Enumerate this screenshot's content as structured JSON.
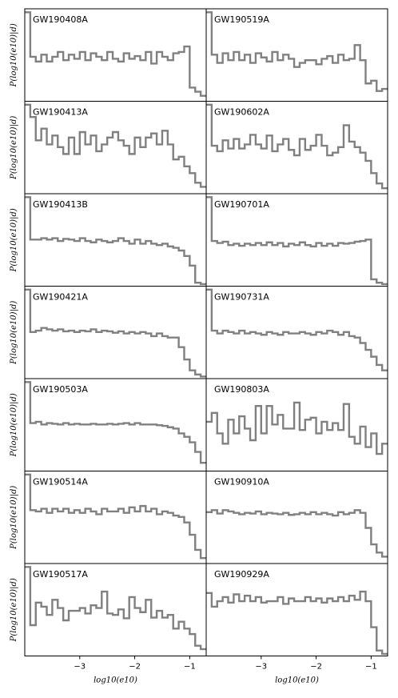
{
  "chart_data": {
    "type": "step-histogram",
    "layout": {
      "rows": 7,
      "cols": 2
    },
    "line_color": "#808080",
    "ylabel": "P(log10(e10)|d)",
    "xlabel": "log10(e10)",
    "xlim": [
      -4.0,
      -0.7
    ],
    "ylim": [
      0,
      1.35
    ],
    "xticks": [
      -3,
      -2,
      -1
    ],
    "xtick_labels": [
      "−3",
      "−2",
      "−1"
    ],
    "bins": [
      -4.0,
      -3.9,
      -3.8,
      -3.7,
      -3.6,
      -3.5,
      -3.4,
      -3.3,
      -3.2,
      -3.1,
      -3.0,
      -2.9,
      -2.8,
      -2.7,
      -2.6,
      -2.5,
      -2.4,
      -2.3,
      -2.2,
      -2.1,
      -2.0,
      -1.9,
      -1.8,
      -1.7,
      -1.6,
      -1.5,
      -1.4,
      -1.3,
      -1.2,
      -1.1,
      -1.0,
      -0.9,
      -0.8,
      -0.7
    ],
    "panels": [
      {
        "title": "GW190408A",
        "values": [
          1.3,
          0.65,
          0.58,
          0.68,
          0.58,
          0.65,
          0.72,
          0.6,
          0.68,
          0.62,
          0.72,
          0.6,
          0.7,
          0.65,
          0.6,
          0.72,
          0.62,
          0.58,
          0.7,
          0.62,
          0.66,
          0.6,
          0.72,
          0.55,
          0.72,
          0.65,
          0.6,
          0.7,
          0.72,
          0.8,
          0.2,
          0.14,
          0.08
        ]
      },
      {
        "title": "GW190519A",
        "values": [
          1.3,
          0.68,
          0.56,
          0.7,
          0.6,
          0.72,
          0.6,
          0.68,
          0.56,
          0.7,
          0.64,
          0.58,
          0.72,
          0.6,
          0.68,
          0.62,
          0.5,
          0.56,
          0.6,
          0.6,
          0.54,
          0.62,
          0.66,
          0.56,
          0.68,
          0.6,
          0.62,
          0.82,
          0.6,
          0.26,
          0.3,
          0.15,
          0.18
        ]
      },
      {
        "title": "GW190413A",
        "values": [
          1.3,
          1.12,
          0.78,
          0.95,
          0.72,
          0.85,
          0.68,
          0.58,
          0.82,
          0.58,
          0.9,
          0.72,
          0.85,
          0.62,
          0.72,
          0.82,
          0.9,
          0.78,
          0.7,
          0.58,
          0.82,
          0.68,
          0.82,
          0.88,
          0.72,
          0.92,
          0.72,
          0.5,
          0.54,
          0.4,
          0.3,
          0.16,
          0.1
        ]
      },
      {
        "title": "GW190602A",
        "values": [
          1.3,
          0.7,
          0.62,
          0.78,
          0.66,
          0.8,
          0.66,
          0.72,
          0.86,
          0.72,
          0.66,
          0.85,
          0.62,
          0.72,
          0.8,
          0.64,
          0.56,
          0.8,
          0.64,
          0.7,
          0.86,
          0.7,
          0.56,
          0.6,
          0.68,
          1.0,
          0.76,
          0.68,
          0.6,
          0.48,
          0.3,
          0.15,
          0.08
        ]
      },
      {
        "title": "GW190413B",
        "values": [
          1.3,
          0.68,
          0.68,
          0.7,
          0.68,
          0.7,
          0.66,
          0.69,
          0.68,
          0.66,
          0.7,
          0.66,
          0.64,
          0.68,
          0.66,
          0.64,
          0.66,
          0.7,
          0.66,
          0.62,
          0.68,
          0.62,
          0.66,
          0.62,
          0.6,
          0.62,
          0.58,
          0.56,
          0.52,
          0.44,
          0.3,
          0.05,
          0.03
        ]
      },
      {
        "title": "GW190701A",
        "values": [
          1.3,
          0.66,
          0.63,
          0.65,
          0.6,
          0.62,
          0.59,
          0.62,
          0.6,
          0.63,
          0.6,
          0.64,
          0.6,
          0.63,
          0.58,
          0.62,
          0.6,
          0.64,
          0.6,
          0.58,
          0.63,
          0.59,
          0.62,
          0.59,
          0.63,
          0.62,
          0.63,
          0.65,
          0.66,
          0.68,
          0.1,
          0.05,
          0.03
        ]
      },
      {
        "title": "GW190421A",
        "values": [
          1.3,
          0.68,
          0.7,
          0.74,
          0.72,
          0.7,
          0.72,
          0.69,
          0.7,
          0.68,
          0.7,
          0.69,
          0.72,
          0.68,
          0.7,
          0.69,
          0.67,
          0.69,
          0.66,
          0.68,
          0.66,
          0.68,
          0.66,
          0.62,
          0.66,
          0.62,
          0.6,
          0.6,
          0.46,
          0.28,
          0.12,
          0.06,
          0.03
        ]
      },
      {
        "title": "GW190731A",
        "values": [
          1.3,
          0.7,
          0.66,
          0.7,
          0.68,
          0.66,
          0.7,
          0.66,
          0.68,
          0.66,
          0.64,
          0.68,
          0.66,
          0.64,
          0.68,
          0.66,
          0.66,
          0.68,
          0.66,
          0.64,
          0.68,
          0.66,
          0.7,
          0.68,
          0.64,
          0.68,
          0.62,
          0.6,
          0.52,
          0.42,
          0.32,
          0.2,
          0.12
        ]
      },
      {
        "title": "GW190503A",
        "values": [
          1.3,
          0.7,
          0.72,
          0.68,
          0.7,
          0.69,
          0.68,
          0.7,
          0.68,
          0.69,
          0.68,
          0.68,
          0.69,
          0.68,
          0.68,
          0.69,
          0.68,
          0.69,
          0.7,
          0.68,
          0.7,
          0.68,
          0.68,
          0.68,
          0.67,
          0.66,
          0.64,
          0.62,
          0.55,
          0.5,
          0.42,
          0.28,
          0.12
        ]
      },
      {
        "title": "GW190803A",
        "values": [
          0.72,
          0.85,
          0.55,
          0.4,
          0.75,
          0.55,
          0.8,
          0.62,
          0.45,
          0.95,
          0.55,
          0.95,
          0.68,
          0.82,
          0.62,
          0.62,
          1.0,
          0.6,
          0.75,
          0.78,
          0.55,
          0.72,
          0.6,
          0.7,
          0.6,
          0.98,
          0.5,
          0.4,
          0.65,
          0.35,
          0.55,
          0.25,
          0.4
        ]
      },
      {
        "title": "GW190514A",
        "values": [
          1.3,
          0.78,
          0.76,
          0.8,
          0.74,
          0.8,
          0.76,
          0.8,
          0.74,
          0.78,
          0.74,
          0.8,
          0.76,
          0.72,
          0.8,
          0.76,
          0.76,
          0.8,
          0.74,
          0.82,
          0.76,
          0.84,
          0.76,
          0.8,
          0.72,
          0.76,
          0.74,
          0.7,
          0.68,
          0.6,
          0.42,
          0.2,
          0.08
        ]
      },
      {
        "title": "GW190910A",
        "values": [
          0.75,
          0.78,
          0.73,
          0.78,
          0.76,
          0.74,
          0.72,
          0.74,
          0.73,
          0.76,
          0.72,
          0.74,
          0.73,
          0.72,
          0.74,
          0.71,
          0.72,
          0.74,
          0.72,
          0.75,
          0.72,
          0.74,
          0.72,
          0.7,
          0.75,
          0.72,
          0.74,
          0.78,
          0.74,
          0.52,
          0.28,
          0.16,
          0.1
        ]
      },
      {
        "title": "GW190517A",
        "values": [
          1.3,
          0.45,
          0.78,
          0.72,
          0.6,
          0.82,
          0.7,
          0.52,
          0.66,
          0.66,
          0.7,
          0.62,
          0.74,
          0.7,
          0.94,
          0.62,
          0.6,
          0.68,
          0.55,
          0.86,
          0.7,
          0.64,
          0.82,
          0.56,
          0.66,
          0.56,
          0.6,
          0.4,
          0.5,
          0.4,
          0.32,
          0.15,
          0.1
        ]
      },
      {
        "title": "GW190929A",
        "values": [
          0.92,
          0.72,
          0.8,
          0.86,
          0.78,
          0.9,
          0.8,
          0.88,
          0.8,
          0.86,
          0.78,
          0.8,
          0.8,
          0.86,
          0.76,
          0.84,
          0.8,
          0.8,
          0.86,
          0.8,
          0.84,
          0.78,
          0.84,
          0.8,
          0.86,
          0.8,
          0.88,
          0.82,
          0.94,
          0.8,
          0.42,
          0.08,
          0.03
        ]
      }
    ]
  }
}
